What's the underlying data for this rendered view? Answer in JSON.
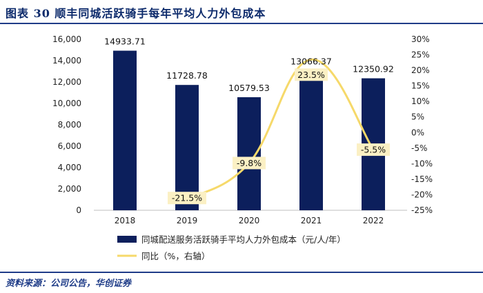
{
  "header": {
    "title": "图表 30 顺丰同城活跃骑手每年平均人力外包成本"
  },
  "footer": {
    "source": "资料来源：公司公告，华创证券"
  },
  "chart_data": {
    "type": "bar+line",
    "title": "图表 30 顺丰同城活跃骑手每年平均人力外包成本",
    "categories": [
      "2018",
      "2019",
      "2020",
      "2021",
      "2022"
    ],
    "series": [
      {
        "name": "同城配送服务活跃骑手平均人力外包成本（元/人/年）",
        "type": "bar",
        "axis": "left",
        "values": [
          14933.71,
          11728.78,
          10579.53,
          13066.37,
          12350.92
        ],
        "labels": [
          "14933.71",
          "11728.78",
          "10579.53",
          "13066.37",
          "12350.92"
        ],
        "color": "#0c1f5c"
      },
      {
        "name": "同比（%，右轴）",
        "type": "line",
        "axis": "right",
        "values": [
          null,
          -21.5,
          -9.8,
          23.5,
          -5.5
        ],
        "labels": [
          "",
          "-21.5%",
          "-9.8%",
          "23.5%",
          "-5.5%"
        ],
        "color": "#f6d96a",
        "label_bg": "#fbf0c4"
      }
    ],
    "y_left": {
      "min": 0,
      "max": 16000,
      "ticks": [
        0,
        2000,
        4000,
        6000,
        8000,
        10000,
        12000,
        14000,
        16000
      ],
      "tick_labels": [
        "0",
        "2,000",
        "4,000",
        "6,000",
        "8,000",
        "10,000",
        "12,000",
        "14,000",
        "16,000"
      ]
    },
    "y_right": {
      "min": -25,
      "max": 30,
      "ticks": [
        -25,
        -20,
        -15,
        -10,
        -5,
        0,
        5,
        10,
        15,
        20,
        25,
        30
      ],
      "tick_labels": [
        "-25%",
        "-20%",
        "-15%",
        "-10%",
        "-5%",
        "0%",
        "5%",
        "10%",
        "15%",
        "20%",
        "25%",
        "30%"
      ]
    },
    "legend": {
      "position": "bottom",
      "items": [
        "同城配送服务活跃骑手平均人力外包成本（元/人/年）",
        "同比（%，右轴）"
      ]
    },
    "grid": false
  }
}
